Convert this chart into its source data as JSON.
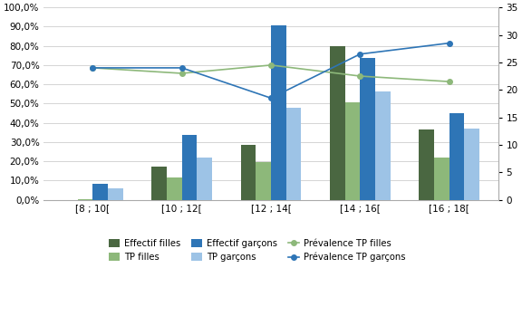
{
  "categories": [
    "[8 ; 10[",
    "[10 ; 12[",
    "[12 ; 14[",
    "[14 ; 16[",
    "[16 ; 18["
  ],
  "effectif_filles": [
    0.0,
    0.17,
    0.285,
    0.8,
    0.365
  ],
  "tp_filles": [
    0.005,
    0.115,
    0.195,
    0.505,
    0.22
  ],
  "effectif_garcons": [
    0.085,
    0.335,
    0.905,
    0.735,
    0.45
  ],
  "tp_garcons": [
    0.06,
    0.22,
    0.48,
    0.565,
    0.37
  ],
  "prevalence_tp_filles": [
    24.0,
    23.0,
    24.5,
    22.5,
    21.5
  ],
  "prevalence_tp_garcons": [
    24.0,
    24.0,
    18.5,
    26.5,
    28.5
  ],
  "bar_colors": {
    "effectif_filles": "#4a6741",
    "tp_filles": "#8db87a",
    "effectif_garcons": "#2e75b6",
    "tp_garcons": "#9dc3e6"
  },
  "line_colors": {
    "prevalence_tp_filles": "#8db87a",
    "prevalence_tp_garcons": "#2e75b6"
  },
  "ylim_left": [
    0.0,
    1.0
  ],
  "ylim_right": [
    0,
    35
  ],
  "yticks_left": [
    0.0,
    0.1,
    0.2,
    0.3,
    0.4,
    0.5,
    0.6,
    0.7,
    0.8,
    0.9,
    1.0
  ],
  "yticks_right": [
    0,
    5,
    10,
    15,
    20,
    25,
    30,
    35
  ],
  "legend_labels": [
    "Effectif filles",
    "TP filles",
    "Effectif garçons",
    "TP garçons",
    "Prévalence TP filles",
    "Prévalence TP garçons"
  ],
  "background_color": "#ffffff",
  "grid_color": "#d4d4d4"
}
